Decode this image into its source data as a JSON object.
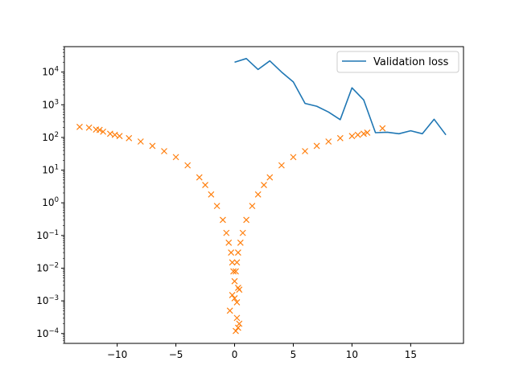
{
  "chart_data": {
    "type": "line",
    "title": "",
    "xlabel": "",
    "ylabel": "",
    "xlim": [
      -14.5,
      19.5
    ],
    "ylim": [
      5e-05,
      60000
    ],
    "y_scale": "log",
    "grid": false,
    "legend": {
      "placement": "top-right",
      "entries": [
        "Validation loss"
      ]
    },
    "x_ticks": [
      {
        "value": -10,
        "label": "−10"
      },
      {
        "value": -5,
        "label": "−5"
      },
      {
        "value": 0,
        "label": "0"
      },
      {
        "value": 5,
        "label": "5"
      },
      {
        "value": 10,
        "label": "10"
      },
      {
        "value": 15,
        "label": "15"
      }
    ],
    "y_ticks": [
      {
        "value": 0.0001,
        "base": "10",
        "exp": "−4"
      },
      {
        "value": 0.001,
        "base": "10",
        "exp": "−3"
      },
      {
        "value": 0.01,
        "base": "10",
        "exp": "−2"
      },
      {
        "value": 0.1,
        "base": "10",
        "exp": "−1"
      },
      {
        "value": 1,
        "base": "10",
        "exp": "0"
      },
      {
        "value": 10,
        "base": "10",
        "exp": "1"
      },
      {
        "value": 100,
        "base": "10",
        "exp": "2"
      },
      {
        "value": 1000,
        "base": "10",
        "exp": "3"
      },
      {
        "value": 10000,
        "base": "10",
        "exp": "4"
      }
    ],
    "series": [
      {
        "name": "Validation loss",
        "kind": "line",
        "color": "#1f77b4",
        "x": [
          0,
          1,
          2,
          3,
          4,
          5,
          6,
          7,
          8,
          9,
          10,
          11,
          12,
          13,
          14,
          15,
          16,
          17,
          18
        ],
        "y": [
          20000,
          26000,
          12000,
          22000,
          10000,
          5000,
          1100,
          900,
          600,
          350,
          3300,
          1400,
          140,
          145,
          130,
          160,
          130,
          360,
          120
        ]
      },
      {
        "kind": "scatter",
        "marker": "x",
        "color": "#ff7f0e",
        "x": [
          -13.2,
          -12.4,
          -11.8,
          -11.5,
          -11.2,
          -10.6,
          -10.2,
          -9.8,
          -9.0,
          -8.0,
          -7.0,
          -6.0,
          -5.0,
          -4.0,
          -3.0,
          -2.5,
          -2.0,
          -1.5,
          -1.0,
          -0.7,
          -0.5,
          -0.3,
          -0.2,
          -0.1,
          0.0,
          0.1,
          0.2,
          0.3,
          0.5,
          0.7,
          1.0,
          1.5,
          2.0,
          2.5,
          3.0,
          4.0,
          5.0,
          6.0,
          7.0,
          8.0,
          9.0,
          10.0,
          10.5,
          11.0,
          11.3,
          12.6,
          -0.4,
          -0.2,
          0.0,
          0.2,
          0.3,
          0.2,
          0.4,
          0.3,
          0.1,
          0.4
        ],
        "y": [
          210,
          200,
          175,
          170,
          150,
          130,
          120,
          110,
          95,
          75,
          55,
          38,
          25,
          14,
          6,
          3.5,
          1.8,
          0.8,
          0.3,
          0.12,
          0.06,
          0.03,
          0.015,
          0.008,
          0.004,
          0.008,
          0.015,
          0.03,
          0.06,
          0.12,
          0.3,
          0.8,
          1.8,
          3.5,
          6,
          14,
          25,
          38,
          55,
          75,
          95,
          110,
          120,
          130,
          140,
          190,
          0.0005,
          0.0015,
          0.0012,
          0.0009,
          0.0025,
          0.0003,
          0.0002,
          0.00015,
          0.00012,
          0.0022
        ]
      }
    ]
  }
}
